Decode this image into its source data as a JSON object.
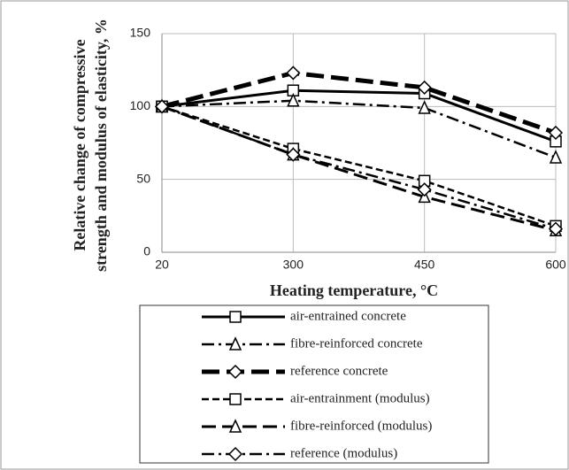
{
  "chart_data": {
    "type": "line",
    "ylabel": [
      "Relative change of compressive",
      "strength and modulus of elasticity, %"
    ],
    "xlabel": "Heating temperature, °C",
    "categories": [
      "20",
      "300",
      "450",
      "600"
    ],
    "ylim": [
      0,
      150
    ],
    "yticks": [
      0,
      50,
      100,
      150
    ],
    "grid": true,
    "series": [
      {
        "name": "air-entrained concrete",
        "color": "#000000",
        "line": "solid",
        "marker": "square",
        "values": [
          100,
          111,
          109,
          76
        ]
      },
      {
        "name": "fibre-reinforced concrete",
        "color": "#000000",
        "line": "dash-dot",
        "marker": "triangle",
        "values": [
          100,
          104,
          99,
          65
        ]
      },
      {
        "name": "reference concrete",
        "color": "#000000",
        "line": "heavy-dash",
        "marker": "diamond",
        "values": [
          100,
          123,
          113,
          82
        ]
      },
      {
        "name": "air-entrainment (modulus)",
        "color": "#000000",
        "line": "dash",
        "marker": "square",
        "values": [
          100,
          71,
          49,
          18
        ]
      },
      {
        "name": "fibre-reinforced (modulus)",
        "color": "#000000",
        "line": "long-dash",
        "marker": "triangle",
        "values": [
          100,
          67,
          38,
          15
        ]
      },
      {
        "name": "reference (modulus)",
        "color": "#000000",
        "line": "dash-dot",
        "marker": "diamond",
        "values": [
          100,
          67,
          43,
          16
        ]
      }
    ]
  }
}
